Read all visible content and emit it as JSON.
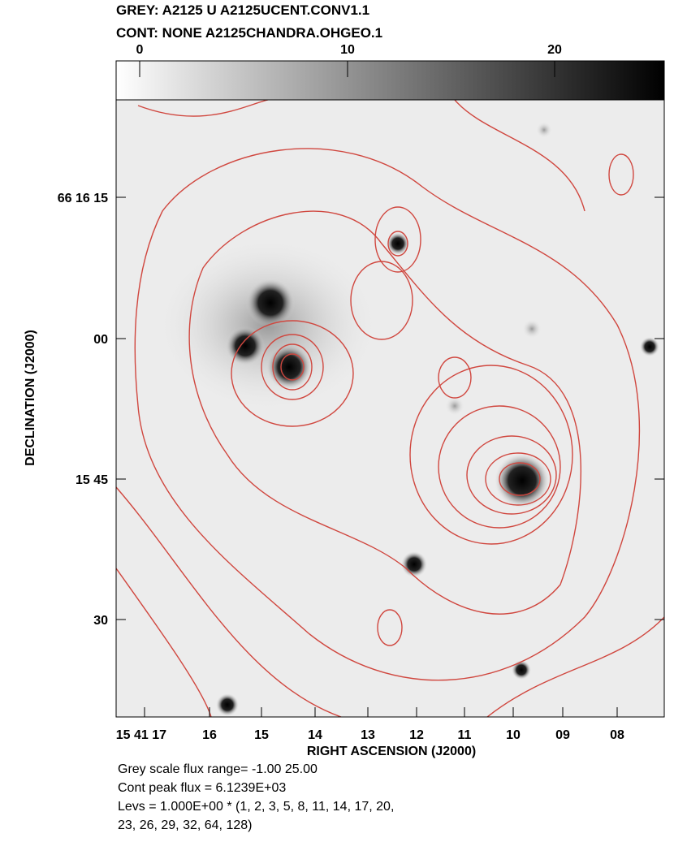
{
  "header": {
    "line1": "GREY: A2125 U  A2125UCENT.CONV1.1",
    "line2": "CONT: NONE  A2125CHANDRA.OHGEO.1"
  },
  "colorbar": {
    "ticks": [
      "0",
      "10",
      "20"
    ]
  },
  "y_axis": {
    "label": "DECLINATION (J2000)",
    "ticks": [
      "66 16 15",
      "00",
      "15 45",
      "30"
    ]
  },
  "x_axis": {
    "label": "RIGHT ASCENSION (J2000)",
    "ticks": [
      "15 41 17",
      "16",
      "15",
      "14",
      "13",
      "12",
      "11",
      "10",
      "09",
      "08"
    ]
  },
  "footer": {
    "lines": [
      "Grey scale flux range= -1.00 25.00",
      "Cont peak flux =  6.1239E+03",
      "Levs = 1.000E+00 * (1, 2, 3, 5, 8, 11, 14, 17, 20,",
      "23, 26, 29, 32, 64, 128)"
    ]
  }
}
